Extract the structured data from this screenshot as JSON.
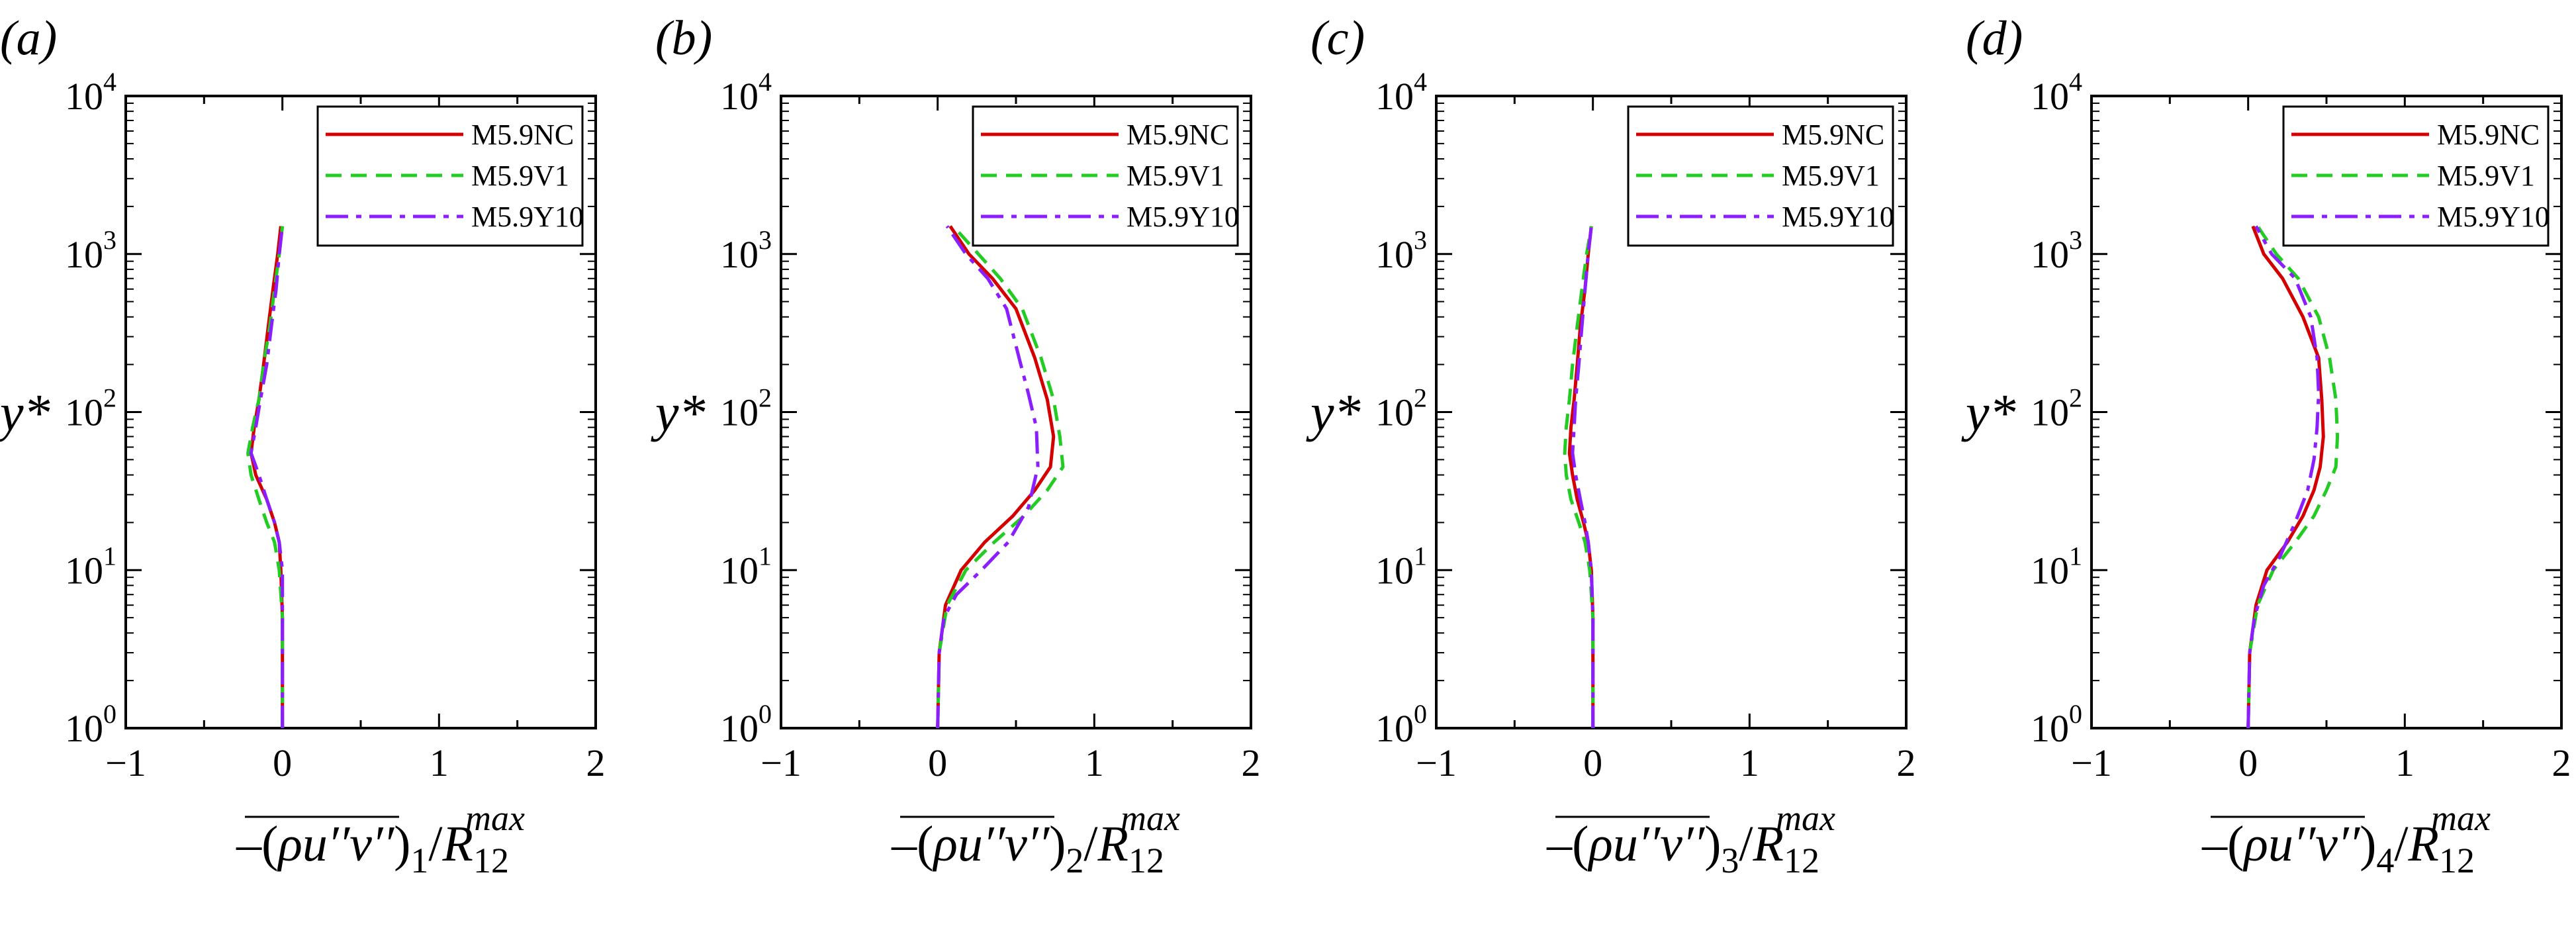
{
  "colors": {
    "M5.9NC": "#d40000",
    "M5.9V1": "#22cc22",
    "M5.9Y10": "#8a1eff"
  },
  "legend": [
    "M5.9NC",
    "M5.9V1",
    "M5.9Y10"
  ],
  "chart_data": [
    {
      "type": "line",
      "panel": "(a)",
      "panel_letter": "a",
      "xlabel_sub": "1",
      "xlabel_sup": "max",
      "xlabel_R": "R",
      "xlabel_R_sub": "12",
      "ylabel": "y*",
      "xlim": [
        -1,
        2
      ],
      "ylim": [
        1,
        10000
      ],
      "yscale": "log",
      "xticks": [
        "−1",
        "0",
        "1",
        "2"
      ],
      "yticks": [
        {
          "base": "10",
          "exp": "0"
        },
        {
          "base": "10",
          "exp": "1"
        },
        {
          "base": "10",
          "exp": "2"
        },
        {
          "base": "10",
          "exp": "3"
        },
        {
          "base": "10",
          "exp": "4"
        }
      ],
      "legend_position": "top-right",
      "series": [
        {
          "name": "M5.9NC",
          "style": "solid",
          "x": [
            0,
            0,
            -0.01,
            -0.02,
            -0.05,
            -0.1,
            -0.17,
            -0.2,
            -0.18,
            -0.15,
            -0.12,
            -0.09,
            -0.06,
            -0.03,
            -0.01
          ],
          "y": [
            1,
            5,
            10,
            15,
            20,
            28,
            40,
            55,
            80,
            120,
            200,
            350,
            600,
            1000,
            1500
          ]
        },
        {
          "name": "M5.9V1",
          "style": "dashed",
          "x": [
            0,
            0,
            -0.02,
            -0.05,
            -0.1,
            -0.15,
            -0.2,
            -0.22,
            -0.19,
            -0.15,
            -0.12,
            -0.08,
            -0.05,
            -0.02,
            0
          ],
          "y": [
            1,
            5,
            10,
            15,
            20,
            28,
            40,
            55,
            80,
            120,
            200,
            350,
            600,
            1000,
            1500
          ]
        },
        {
          "name": "M5.9Y10",
          "style": "dashdot",
          "x": [
            0,
            0,
            0,
            -0.02,
            -0.05,
            -0.1,
            -0.15,
            -0.2,
            -0.17,
            -0.14,
            -0.1,
            -0.07,
            -0.04,
            -0.02,
            0
          ],
          "y": [
            1,
            5,
            10,
            15,
            20,
            28,
            40,
            55,
            80,
            120,
            200,
            350,
            600,
            1000,
            1500
          ]
        }
      ]
    },
    {
      "type": "line",
      "panel": "(b)",
      "panel_letter": "b",
      "xlabel_sub": "2",
      "xlabel_sup": "max",
      "xlabel_R": "R",
      "xlabel_R_sub": "12",
      "ylabel": "y*",
      "xlim": [
        -1,
        2
      ],
      "ylim": [
        1,
        10000
      ],
      "yscale": "log",
      "xticks": [
        "−1",
        "0",
        "1",
        "2"
      ],
      "yticks": [
        {
          "base": "10",
          "exp": "0"
        },
        {
          "base": "10",
          "exp": "1"
        },
        {
          "base": "10",
          "exp": "2"
        },
        {
          "base": "10",
          "exp": "3"
        },
        {
          "base": "10",
          "exp": "4"
        }
      ],
      "legend_position": "top-right",
      "series": [
        {
          "name": "M5.9NC",
          "style": "solid",
          "x": [
            0,
            0.01,
            0.05,
            0.15,
            0.3,
            0.48,
            0.62,
            0.72,
            0.74,
            0.7,
            0.62,
            0.5,
            0.35,
            0.2,
            0.08
          ],
          "y": [
            1,
            3,
            6,
            10,
            15,
            22,
            32,
            45,
            70,
            120,
            220,
            450,
            700,
            1000,
            1500
          ]
        },
        {
          "name": "M5.9V1",
          "style": "dashed",
          "x": [
            0,
            0.01,
            0.06,
            0.18,
            0.36,
            0.55,
            0.7,
            0.8,
            0.78,
            0.74,
            0.66,
            0.54,
            0.4,
            0.26,
            0.1
          ],
          "y": [
            1,
            3,
            6,
            10,
            15,
            22,
            32,
            45,
            70,
            120,
            220,
            450,
            700,
            1000,
            1500
          ]
        },
        {
          "name": "M5.9Y10",
          "style": "dashdot",
          "x": [
            0,
            0.01,
            0.04,
            0.12,
            0.28,
            0.45,
            0.58,
            0.64,
            0.63,
            0.58,
            0.52,
            0.44,
            0.32,
            0.18,
            0.06
          ],
          "y": [
            1,
            3,
            5,
            7,
            10,
            15,
            25,
            45,
            80,
            130,
            220,
            450,
            700,
            1000,
            1500
          ]
        }
      ]
    },
    {
      "type": "line",
      "panel": "(c)",
      "panel_letter": "c",
      "xlabel_sub": "3",
      "xlabel_sup": "max",
      "xlabel_R": "R",
      "xlabel_R_sub": "12",
      "ylabel": "y*",
      "xlim": [
        -1,
        2
      ],
      "ylim": [
        1,
        10000
      ],
      "yscale": "log",
      "xticks": [
        "−1",
        "0",
        "1",
        "2"
      ],
      "yticks": [
        {
          "base": "10",
          "exp": "0"
        },
        {
          "base": "10",
          "exp": "1"
        },
        {
          "base": "10",
          "exp": "2"
        },
        {
          "base": "10",
          "exp": "3"
        },
        {
          "base": "10",
          "exp": "4"
        }
      ],
      "legend_position": "top-right",
      "series": [
        {
          "name": "M5.9NC",
          "style": "solid",
          "x": [
            0,
            0,
            -0.01,
            -0.03,
            -0.06,
            -0.1,
            -0.13,
            -0.15,
            -0.14,
            -0.12,
            -0.1,
            -0.08,
            -0.05,
            -0.03,
            -0.01
          ],
          "y": [
            1,
            5,
            10,
            15,
            20,
            28,
            40,
            55,
            80,
            120,
            200,
            350,
            600,
            1000,
            1500
          ]
        },
        {
          "name": "M5.9V1",
          "style": "dashed",
          "x": [
            0,
            0,
            -0.02,
            -0.05,
            -0.09,
            -0.14,
            -0.17,
            -0.18,
            -0.17,
            -0.15,
            -0.13,
            -0.1,
            -0.07,
            -0.04,
            -0.01
          ],
          "y": [
            1,
            5,
            10,
            15,
            20,
            28,
            40,
            55,
            80,
            120,
            200,
            350,
            600,
            1000,
            1500
          ]
        },
        {
          "name": "M5.9Y10",
          "style": "dashdot",
          "x": [
            0,
            0,
            -0.01,
            -0.03,
            -0.05,
            -0.08,
            -0.11,
            -0.13,
            -0.12,
            -0.11,
            -0.09,
            -0.07,
            -0.05,
            -0.03,
            -0.01
          ],
          "y": [
            1,
            5,
            10,
            15,
            20,
            28,
            40,
            55,
            80,
            120,
            200,
            350,
            600,
            1000,
            1500
          ]
        }
      ]
    },
    {
      "type": "line",
      "panel": "(d)",
      "panel_letter": "d",
      "xlabel_sub": "4",
      "xlabel_sup": "max",
      "xlabel_R": "R",
      "xlabel_R_sub": "12",
      "ylabel": "y*",
      "xlim": [
        -1,
        2
      ],
      "ylim": [
        1,
        10000
      ],
      "yscale": "log",
      "xticks": [
        "−1",
        "0",
        "1",
        "2"
      ],
      "yticks": [
        {
          "base": "10",
          "exp": "0"
        },
        {
          "base": "10",
          "exp": "1"
        },
        {
          "base": "10",
          "exp": "2"
        },
        {
          "base": "10",
          "exp": "3"
        },
        {
          "base": "10",
          "exp": "4"
        }
      ],
      "legend_position": "top-right",
      "series": [
        {
          "name": "M5.9NC",
          "style": "solid",
          "x": [
            0,
            0.01,
            0.05,
            0.12,
            0.25,
            0.35,
            0.42,
            0.46,
            0.48,
            0.47,
            0.45,
            0.35,
            0.22,
            0.1,
            0.03
          ],
          "y": [
            1,
            3,
            6,
            10,
            15,
            22,
            32,
            45,
            70,
            120,
            220,
            400,
            700,
            1000,
            1500
          ]
        },
        {
          "name": "M5.9V1",
          "style": "dashed",
          "x": [
            0,
            0.01,
            0.06,
            0.16,
            0.3,
            0.42,
            0.5,
            0.56,
            0.57,
            0.56,
            0.52,
            0.45,
            0.32,
            0.18,
            0.06
          ],
          "y": [
            1,
            3,
            6,
            10,
            15,
            22,
            32,
            45,
            70,
            120,
            220,
            400,
            700,
            1000,
            1500
          ]
        },
        {
          "name": "M5.9Y10",
          "style": "dashdot",
          "x": [
            0,
            0.01,
            0.04,
            0.1,
            0.2,
            0.3,
            0.38,
            0.42,
            0.44,
            0.45,
            0.44,
            0.4,
            0.3,
            0.15,
            0.05
          ],
          "y": [
            1,
            3,
            5,
            8,
            12,
            20,
            32,
            50,
            80,
            130,
            220,
            400,
            700,
            1000,
            1500
          ]
        }
      ]
    }
  ]
}
